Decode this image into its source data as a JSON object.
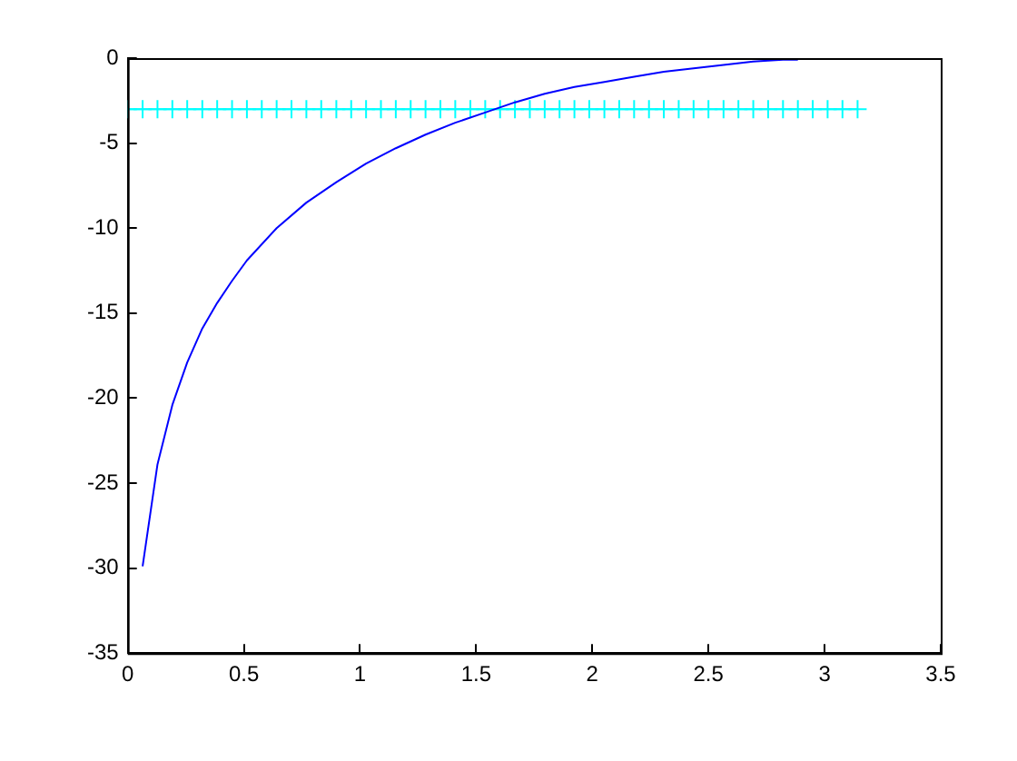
{
  "chart_data": {
    "type": "line",
    "xlim": [
      0,
      3.5
    ],
    "xticks": [
      0,
      0.5,
      1,
      1.5,
      2,
      2.5,
      3,
      3.5
    ],
    "ylim": [
      -35,
      0
    ],
    "yticks": [
      -35,
      -30,
      -25,
      -20,
      -15,
      -10,
      -5,
      0
    ],
    "grid": false,
    "legend": false,
    "series": [
      {
        "color": "#0000ff",
        "marker": "none",
        "x": [
          0.064,
          0.128,
          0.192,
          0.256,
          0.321,
          0.385,
          0.449,
          0.513,
          0.641,
          0.769,
          0.898,
          1.026,
          1.154,
          1.282,
          1.41,
          1.539,
          1.667,
          1.795,
          1.923,
          2.052,
          2.18,
          2.308,
          2.436,
          2.565,
          2.693,
          2.821,
          2.885
        ],
        "values": [
          -29.9,
          -23.9,
          -20.4,
          -17.9,
          -15.9,
          -14.4,
          -13.1,
          -11.9,
          -10.0,
          -8.5,
          -7.3,
          -6.2,
          -5.3,
          -4.5,
          -3.8,
          -3.2,
          -2.6,
          -2.1,
          -1.7,
          -1.4,
          -1.1,
          -0.8,
          -0.6,
          -0.4,
          -0.2,
          -0.1,
          -0.1
        ]
      },
      {
        "color": "#00ffff",
        "marker": "cross",
        "x": [
          0,
          0.064,
          0.128,
          0.192,
          0.256,
          0.321,
          0.385,
          0.449,
          0.513,
          0.577,
          0.641,
          0.705,
          0.769,
          0.833,
          0.898,
          0.962,
          1.026,
          1.09,
          1.154,
          1.218,
          1.282,
          1.346,
          1.41,
          1.475,
          1.539,
          1.603,
          1.667,
          1.731,
          1.795,
          1.859,
          1.923,
          1.987,
          2.052,
          2.116,
          2.18,
          2.244,
          2.308,
          2.372,
          2.436,
          2.5,
          2.565,
          2.629,
          2.693,
          2.757,
          2.821,
          2.885,
          2.949,
          3.013,
          3.077,
          3.142
        ],
        "values": [
          -3,
          -3,
          -3,
          -3,
          -3,
          -3,
          -3,
          -3,
          -3,
          -3,
          -3,
          -3,
          -3,
          -3,
          -3,
          -3,
          -3,
          -3,
          -3,
          -3,
          -3,
          -3,
          -3,
          -3,
          -3,
          -3,
          -3,
          -3,
          -3,
          -3,
          -3,
          -3,
          -3,
          -3,
          -3,
          -3,
          -3,
          -3,
          -3,
          -3,
          -3,
          -3,
          -3,
          -3,
          -3,
          -3,
          -3,
          -3,
          -3,
          -3
        ]
      }
    ]
  }
}
